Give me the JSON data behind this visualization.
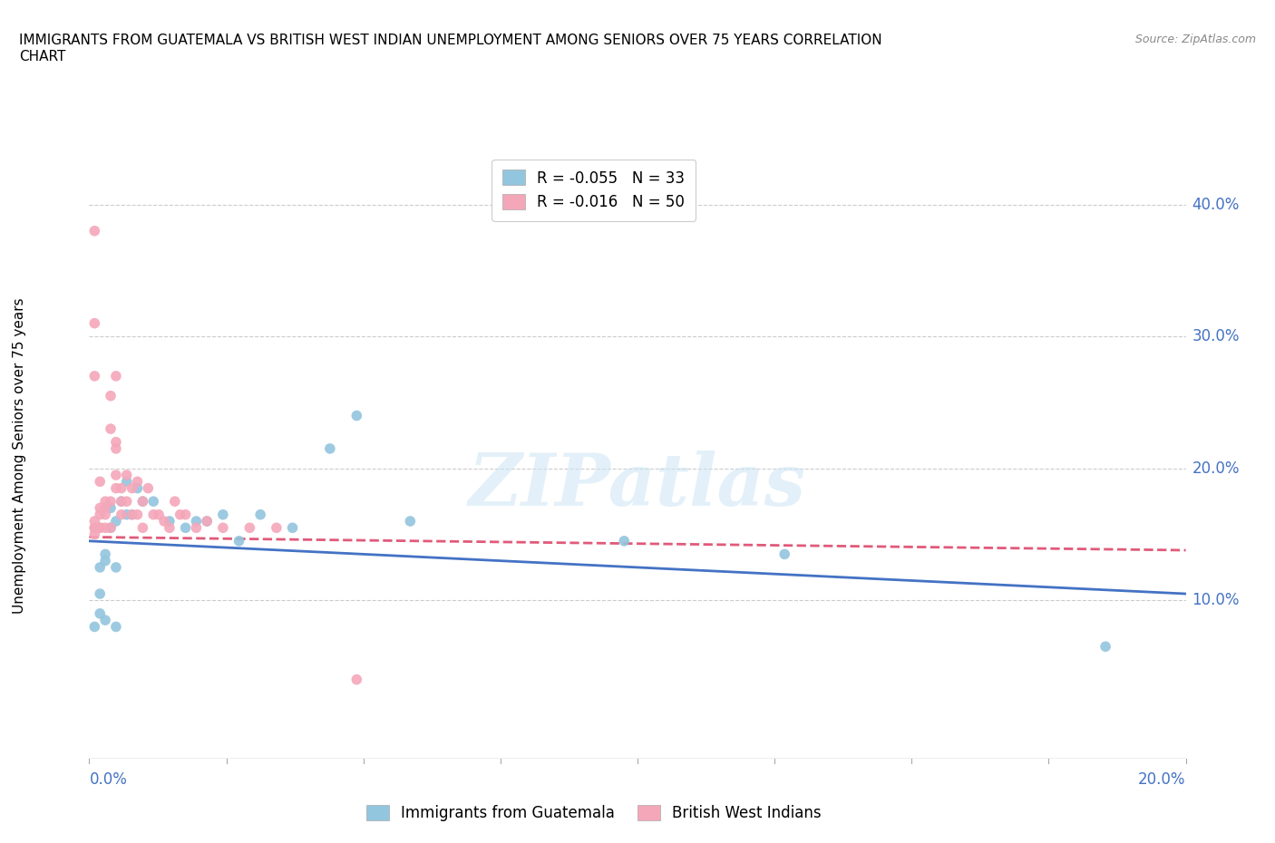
{
  "title": "IMMIGRANTS FROM GUATEMALA VS BRITISH WEST INDIAN UNEMPLOYMENT AMONG SENIORS OVER 75 YEARS CORRELATION\nCHART",
  "source": "Source: ZipAtlas.com",
  "ylabel": "Unemployment Among Seniors over 75 years",
  "xlim": [
    0.0,
    0.205
  ],
  "ylim": [
    -0.02,
    0.44
  ],
  "legend_r1": "R = -0.055   N = 33",
  "legend_r2": "R = -0.016   N = 50",
  "color_blue": "#92c5de",
  "color_pink": "#f4a7b9",
  "trendline_blue": "#4472c4",
  "trendline_pink": "#e05a7a",
  "watermark": "ZIPatlas",
  "guatemala_x": [
    0.001,
    0.002,
    0.002,
    0.002,
    0.003,
    0.003,
    0.003,
    0.004,
    0.004,
    0.005,
    0.005,
    0.005,
    0.006,
    0.007,
    0.007,
    0.008,
    0.009,
    0.01,
    0.012,
    0.015,
    0.018,
    0.02,
    0.022,
    0.025,
    0.028,
    0.032,
    0.038,
    0.045,
    0.05,
    0.06,
    0.1,
    0.13,
    0.19
  ],
  "guatemala_y": [
    0.08,
    0.125,
    0.09,
    0.105,
    0.135,
    0.13,
    0.085,
    0.155,
    0.17,
    0.16,
    0.125,
    0.08,
    0.175,
    0.165,
    0.19,
    0.165,
    0.185,
    0.175,
    0.175,
    0.16,
    0.155,
    0.16,
    0.16,
    0.165,
    0.145,
    0.165,
    0.155,
    0.215,
    0.24,
    0.16,
    0.145,
    0.135,
    0.065
  ],
  "bwi_x": [
    0.001,
    0.001,
    0.001,
    0.001,
    0.001,
    0.001,
    0.001,
    0.002,
    0.002,
    0.002,
    0.002,
    0.002,
    0.003,
    0.003,
    0.003,
    0.003,
    0.004,
    0.004,
    0.004,
    0.004,
    0.005,
    0.005,
    0.005,
    0.005,
    0.005,
    0.006,
    0.006,
    0.006,
    0.007,
    0.007,
    0.008,
    0.008,
    0.009,
    0.009,
    0.01,
    0.01,
    0.011,
    0.012,
    0.013,
    0.014,
    0.015,
    0.016,
    0.017,
    0.018,
    0.02,
    0.022,
    0.025,
    0.03,
    0.035,
    0.05
  ],
  "bwi_y": [
    0.155,
    0.16,
    0.15,
    0.155,
    0.38,
    0.31,
    0.27,
    0.155,
    0.165,
    0.19,
    0.17,
    0.155,
    0.155,
    0.175,
    0.17,
    0.165,
    0.255,
    0.23,
    0.175,
    0.155,
    0.27,
    0.215,
    0.195,
    0.22,
    0.185,
    0.165,
    0.175,
    0.185,
    0.195,
    0.175,
    0.165,
    0.185,
    0.19,
    0.165,
    0.155,
    0.175,
    0.185,
    0.165,
    0.165,
    0.16,
    0.155,
    0.175,
    0.165,
    0.165,
    0.155,
    0.16,
    0.155,
    0.155,
    0.155,
    0.04
  ]
}
